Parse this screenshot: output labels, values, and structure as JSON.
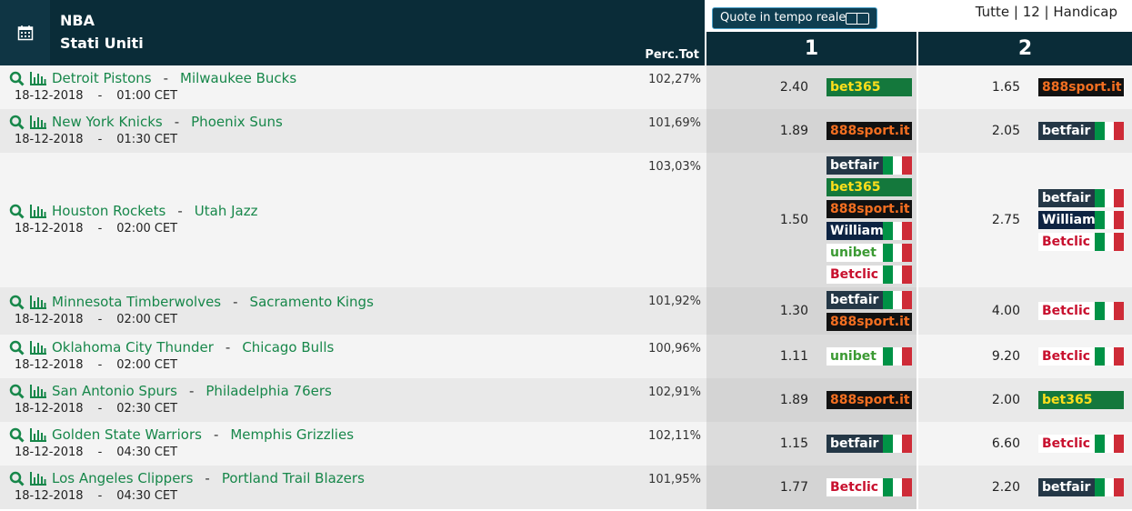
{
  "header": {
    "league": "NBA",
    "country": "Stati Uniti",
    "live_button": "Quote in tempo reale",
    "filters": "Tutte | 12 | Handicap",
    "perc_label": "Perc.Tot",
    "col1": "1",
    "col2": "2"
  },
  "separator": "-",
  "bookmakers": {
    "bet365": {
      "bg": "#14783c",
      "fg": "#ffdf1b",
      "flag": false
    },
    "888sport.it": {
      "bg": "#111111",
      "fg": "#f36f21",
      "flag": false
    },
    "betfair": {
      "bg": "#243746",
      "fg": "#ffffff",
      "flag": true
    },
    "William HILL": {
      "bg": "#0d2342",
      "fg": "#ffffff",
      "flag": true
    },
    "unibet": {
      "bg": "#ffffff",
      "fg": "#3b9a33",
      "flag": true
    },
    "Betclic": {
      "bg": "#ffffff",
      "fg": "#c8102e",
      "flag": true
    }
  },
  "table": {
    "rows": [
      {
        "home": "Detroit Pistons",
        "away": "Milwaukee Bucks",
        "date": "18-12-2018",
        "time": "01:00 CET",
        "perc": "102,27%",
        "odds1": "2.40",
        "books1": [
          "bet365"
        ],
        "odds2": "1.65",
        "books2": [
          "888sport.it"
        ]
      },
      {
        "home": "New York Knicks",
        "away": "Phoenix Suns",
        "date": "18-12-2018",
        "time": "01:30 CET",
        "perc": "101,69%",
        "odds1": "1.89",
        "books1": [
          "888sport.it"
        ],
        "odds2": "2.05",
        "books2": [
          "betfair"
        ]
      },
      {
        "home": "Houston Rockets",
        "away": "Utah Jazz",
        "date": "18-12-2018",
        "time": "02:00 CET",
        "perc": "103,03%",
        "odds1": "1.50",
        "books1": [
          "betfair",
          "bet365",
          "888sport.it",
          "William HILL",
          "unibet",
          "Betclic"
        ],
        "odds2": "2.75",
        "books2": [
          "betfair",
          "William HILL",
          "Betclic"
        ]
      },
      {
        "home": "Minnesota Timberwolves",
        "away": "Sacramento Kings",
        "date": "18-12-2018",
        "time": "02:00 CET",
        "perc": "101,92%",
        "odds1": "1.30",
        "books1": [
          "betfair",
          "888sport.it"
        ],
        "odds2": "4.00",
        "books2": [
          "Betclic"
        ]
      },
      {
        "home": "Oklahoma City Thunder",
        "away": "Chicago Bulls",
        "date": "18-12-2018",
        "time": "02:00 CET",
        "perc": "100,96%",
        "odds1": "1.11",
        "books1": [
          "unibet"
        ],
        "odds2": "9.20",
        "books2": [
          "Betclic"
        ]
      },
      {
        "home": "San Antonio Spurs",
        "away": "Philadelphia 76ers",
        "date": "18-12-2018",
        "time": "02:30 CET",
        "perc": "102,91%",
        "odds1": "1.89",
        "books1": [
          "888sport.it"
        ],
        "odds2": "2.00",
        "books2": [
          "bet365"
        ]
      },
      {
        "home": "Golden State Warriors",
        "away": "Memphis Grizzlies",
        "date": "18-12-2018",
        "time": "04:30 CET",
        "perc": "102,11%",
        "odds1": "1.15",
        "books1": [
          "betfair"
        ],
        "odds2": "6.60",
        "books2": [
          "Betclic"
        ]
      },
      {
        "home": "Los Angeles Clippers",
        "away": "Portland Trail Blazers",
        "date": "18-12-2018",
        "time": "04:30 CET",
        "perc": "101,95%",
        "odds1": "1.77",
        "books1": [
          "Betclic"
        ],
        "odds2": "2.20",
        "books2": [
          "betfair"
        ]
      }
    ]
  }
}
